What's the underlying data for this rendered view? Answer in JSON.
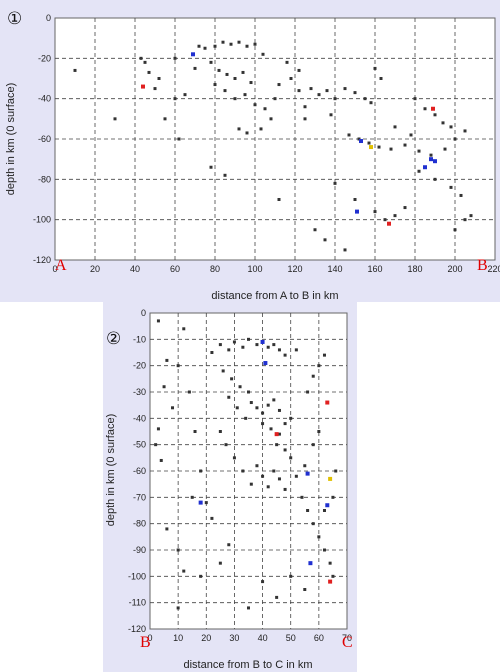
{
  "panels": [
    {
      "number_label": "①",
      "xlabel": "distance from A to B in km",
      "ylabel": "depth in km (0 surface)",
      "xlim": [
        0,
        220
      ],
      "ylim": [
        -120,
        0
      ],
      "xticks": [
        0,
        20,
        40,
        60,
        80,
        100,
        120,
        140,
        160,
        180,
        200,
        220
      ],
      "yticks": [
        0,
        -20,
        -40,
        -60,
        -80,
        -100,
        -120
      ],
      "start_label": "A",
      "end_label": "B"
    },
    {
      "number_label": "②",
      "xlabel": "distance from B to C in km",
      "ylabel": "depth in km (0 surface)",
      "xlim": [
        0,
        70
      ],
      "ylim": [
        -120,
        0
      ],
      "xticks": [
        0,
        10,
        20,
        30,
        40,
        50,
        60,
        70
      ],
      "yticks": [
        0,
        -10,
        -20,
        -30,
        -40,
        -50,
        -60,
        -70,
        -80,
        -90,
        -100,
        -110,
        -120
      ],
      "start_label": "B",
      "end_label": "C"
    }
  ],
  "chart_data": [
    {
      "type": "scatter",
      "x_range": [
        0,
        220
      ],
      "y_range": [
        -120,
        0
      ],
      "grid": true,
      "series": [
        {
          "color": "#333333",
          "points": [
            [
              10,
              -26
            ],
            [
              30,
              -50
            ],
            [
              43,
              -20
            ],
            [
              45,
              -22
            ],
            [
              47,
              -27
            ],
            [
              50,
              -35
            ],
            [
              52,
              -30
            ],
            [
              60,
              -40
            ],
            [
              65,
              -38
            ],
            [
              70,
              -25
            ],
            [
              72,
              -14
            ],
            [
              75,
              -15
            ],
            [
              80,
              -14
            ],
            [
              84,
              -12
            ],
            [
              88,
              -13
            ],
            [
              92,
              -12
            ],
            [
              96,
              -14
            ],
            [
              100,
              -13
            ],
            [
              104,
              -18
            ],
            [
              78,
              -22
            ],
            [
              82,
              -26
            ],
            [
              86,
              -28
            ],
            [
              90,
              -30
            ],
            [
              94,
              -27
            ],
            [
              98,
              -32
            ],
            [
              80,
              -33
            ],
            [
              85,
              -36
            ],
            [
              90,
              -40
            ],
            [
              95,
              -38
            ],
            [
              100,
              -43
            ],
            [
              105,
              -45
            ],
            [
              108,
              -50
            ],
            [
              103,
              -55
            ],
            [
              110,
              -40
            ],
            [
              112,
              -33
            ],
            [
              118,
              -30
            ],
            [
              122,
              -36
            ],
            [
              128,
              -35
            ],
            [
              132,
              -38
            ],
            [
              136,
              -36
            ],
            [
              140,
              -40
            ],
            [
              145,
              -35
            ],
            [
              150,
              -37
            ],
            [
              155,
              -40
            ],
            [
              158,
              -42
            ],
            [
              125,
              -44
            ],
            [
              138,
              -48
            ],
            [
              147,
              -58
            ],
            [
              152,
              -60
            ],
            [
              157,
              -62
            ],
            [
              162,
              -64
            ],
            [
              168,
              -65
            ],
            [
              175,
              -63
            ],
            [
              182,
              -66
            ],
            [
              188,
              -68
            ],
            [
              195,
              -65
            ],
            [
              200,
              -60
            ],
            [
              205,
              -56
            ],
            [
              178,
              -58
            ],
            [
              170,
              -54
            ],
            [
              180,
              -40
            ],
            [
              185,
              -45
            ],
            [
              190,
              -48
            ],
            [
              194,
              -52
            ],
            [
              198,
              -54
            ],
            [
              182,
              -76
            ],
            [
              190,
              -80
            ],
            [
              198,
              -84
            ],
            [
              203,
              -88
            ],
            [
              208,
              -98
            ],
            [
              205,
              -100
            ],
            [
              200,
              -105
            ],
            [
              160,
              -96
            ],
            [
              165,
              -100
            ],
            [
              170,
              -98
            ],
            [
              175,
              -94
            ],
            [
              150,
              -90
            ],
            [
              140,
              -82
            ],
            [
              125,
              -50
            ],
            [
              112,
              -90
            ],
            [
              116,
              -22
            ],
            [
              122,
              -26
            ],
            [
              160,
              -25
            ],
            [
              163,
              -30
            ],
            [
              78,
              -74
            ],
            [
              85,
              -78
            ],
            [
              130,
              -105
            ],
            [
              135,
              -110
            ],
            [
              145,
              -115
            ],
            [
              60,
              -20
            ],
            [
              62,
              -60
            ],
            [
              55,
              -50
            ],
            [
              92,
              -55
            ],
            [
              96,
              -57
            ]
          ]
        },
        {
          "color": "#2030d0",
          "points": [
            [
              69,
              -18
            ],
            [
              153,
              -61
            ],
            [
              185,
              -74
            ],
            [
              188,
              -70
            ],
            [
              190,
              -71
            ],
            [
              151,
              -96
            ]
          ]
        },
        {
          "color": "#e02020",
          "points": [
            [
              44,
              -34
            ],
            [
              189,
              -45
            ],
            [
              167,
              -102
            ]
          ]
        },
        {
          "color": "#e0c000",
          "points": [
            [
              158,
              -64
            ]
          ]
        }
      ]
    },
    {
      "type": "scatter",
      "x_range": [
        0,
        70
      ],
      "y_range": [
        -120,
        0
      ],
      "grid": true,
      "series": [
        {
          "color": "#333333",
          "points": [
            [
              3,
              -3
            ],
            [
              6,
              -18
            ],
            [
              5,
              -28
            ],
            [
              3,
              -44
            ],
            [
              2,
              -50
            ],
            [
              4,
              -56
            ],
            [
              8,
              -36
            ],
            [
              10,
              -20
            ],
            [
              12,
              -6
            ],
            [
              14,
              -30
            ],
            [
              16,
              -45
            ],
            [
              18,
              -60
            ],
            [
              15,
              -70
            ],
            [
              20,
              -72
            ],
            [
              22,
              -78
            ],
            [
              10,
              -90
            ],
            [
              12,
              -98
            ],
            [
              18,
              -100
            ],
            [
              25,
              -95
            ],
            [
              28,
              -88
            ],
            [
              22,
              -15
            ],
            [
              25,
              -12
            ],
            [
              28,
              -14
            ],
            [
              30,
              -11
            ],
            [
              33,
              -13
            ],
            [
              35,
              -10
            ],
            [
              38,
              -12
            ],
            [
              40,
              -11
            ],
            [
              42,
              -13
            ],
            [
              44,
              -12
            ],
            [
              46,
              -14
            ],
            [
              48,
              -16
            ],
            [
              26,
              -22
            ],
            [
              29,
              -25
            ],
            [
              32,
              -28
            ],
            [
              35,
              -30
            ],
            [
              28,
              -32
            ],
            [
              31,
              -36
            ],
            [
              34,
              -40
            ],
            [
              36,
              -34
            ],
            [
              38,
              -36
            ],
            [
              40,
              -38
            ],
            [
              42,
              -35
            ],
            [
              44,
              -33
            ],
            [
              46,
              -37
            ],
            [
              40,
              -42
            ],
            [
              43,
              -44
            ],
            [
              46,
              -46
            ],
            [
              48,
              -42
            ],
            [
              50,
              -40
            ],
            [
              45,
              -50
            ],
            [
              48,
              -52
            ],
            [
              50,
              -55
            ],
            [
              25,
              -45
            ],
            [
              27,
              -50
            ],
            [
              30,
              -55
            ],
            [
              33,
              -60
            ],
            [
              36,
              -65
            ],
            [
              38,
              -58
            ],
            [
              40,
              -62
            ],
            [
              42,
              -66
            ],
            [
              44,
              -60
            ],
            [
              46,
              -63
            ],
            [
              48,
              -67
            ],
            [
              52,
              -62
            ],
            [
              55,
              -58
            ],
            [
              58,
              -50
            ],
            [
              60,
              -45
            ],
            [
              56,
              -30
            ],
            [
              58,
              -24
            ],
            [
              60,
              -20
            ],
            [
              62,
              -16
            ],
            [
              52,
              -14
            ],
            [
              54,
              -70
            ],
            [
              56,
              -75
            ],
            [
              58,
              -80
            ],
            [
              60,
              -85
            ],
            [
              62,
              -90
            ],
            [
              65,
              -70
            ],
            [
              62,
              -75
            ],
            [
              50,
              -100
            ],
            [
              55,
              -105
            ],
            [
              45,
              -108
            ],
            [
              40,
              -102
            ],
            [
              35,
              -112
            ],
            [
              65,
              -100
            ],
            [
              64,
              -95
            ],
            [
              66,
              -60
            ],
            [
              10,
              -112
            ],
            [
              6,
              -82
            ]
          ]
        },
        {
          "color": "#2030d0",
          "points": [
            [
              18,
              -72
            ],
            [
              41,
              -19
            ],
            [
              56,
              -61
            ],
            [
              63,
              -73
            ],
            [
              57,
              -95
            ],
            [
              40,
              -11
            ]
          ]
        },
        {
          "color": "#e02020",
          "points": [
            [
              63,
              -34
            ],
            [
              45,
              -46
            ],
            [
              64,
              -102
            ]
          ]
        },
        {
          "color": "#e0c000",
          "points": [
            [
              64,
              -63
            ]
          ]
        }
      ]
    }
  ]
}
